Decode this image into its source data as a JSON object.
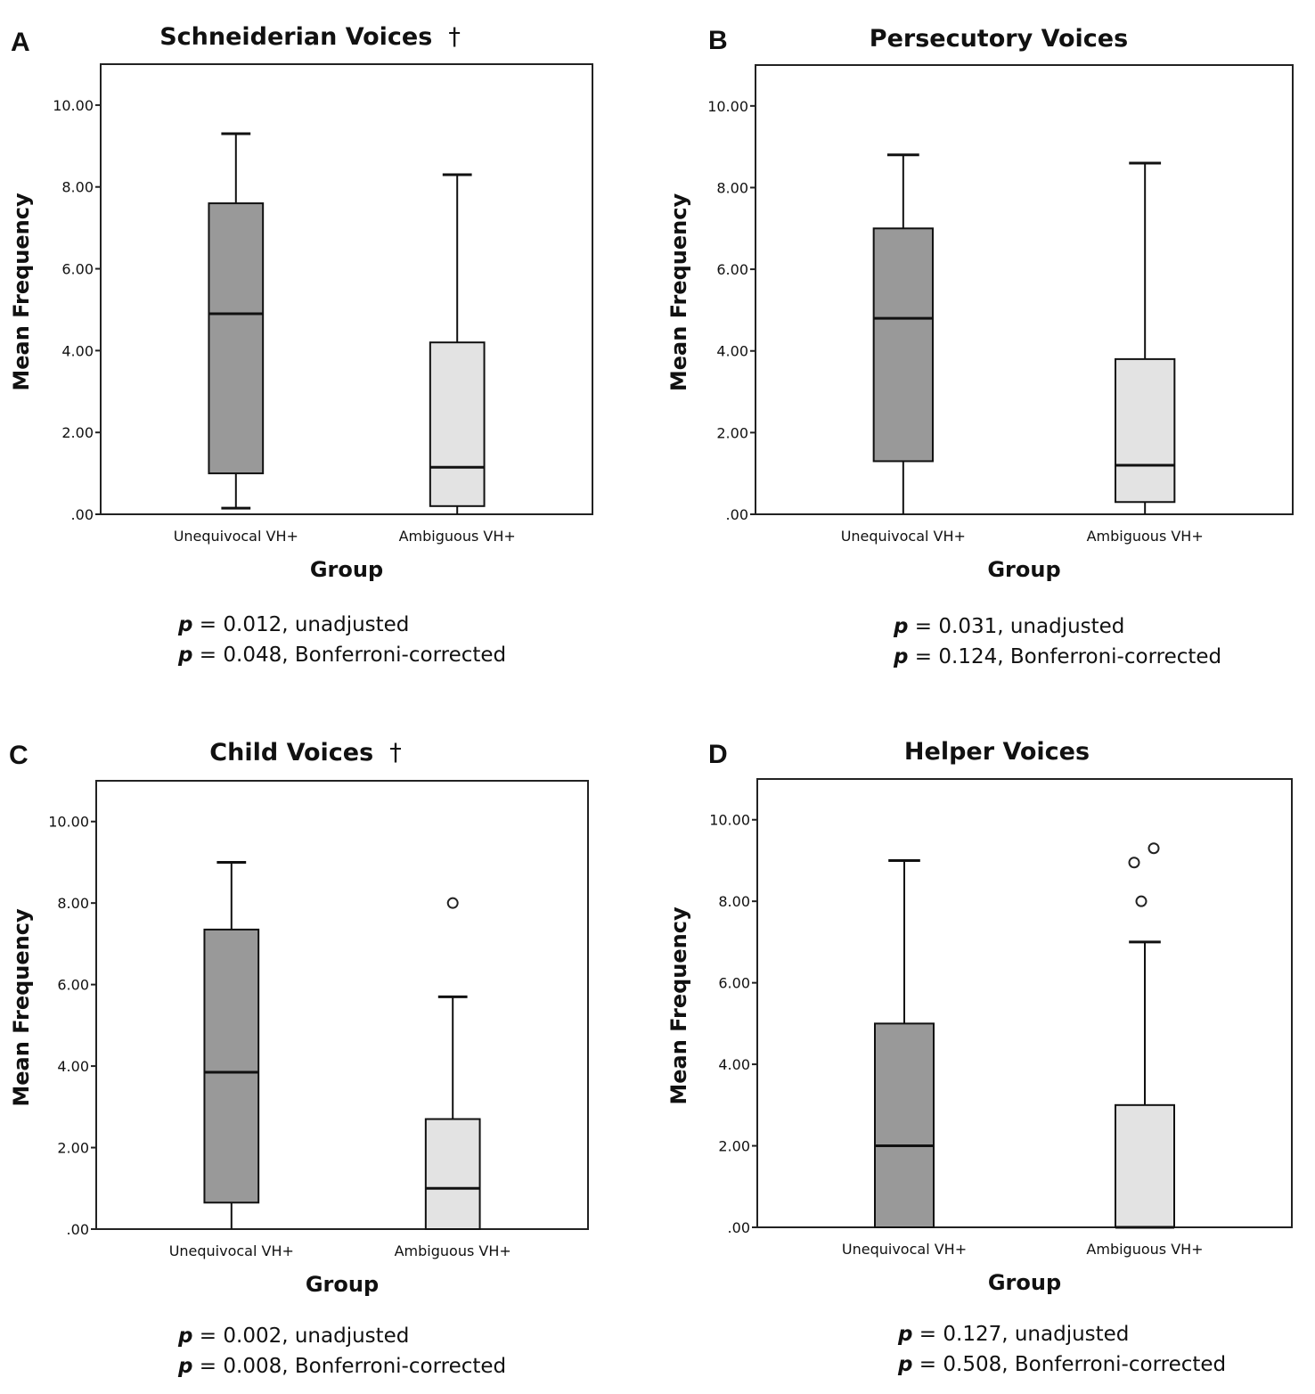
{
  "chart_data": [
    {
      "type": "box",
      "panel_label": "A",
      "title": "Schneiderian Voices",
      "title_mark": "†",
      "xlabel": "Group",
      "ylabel": "Mean Frequency",
      "ylim": [
        0,
        11
      ],
      "yticks": [
        0,
        2,
        4,
        6,
        8,
        10
      ],
      "ytick_labels": [
        ".00",
        "2.00",
        "4.00",
        "6.00",
        "8.00",
        "10.00"
      ],
      "categories": [
        "Unequivocal VH+",
        "Ambiguous VH+"
      ],
      "boxes": [
        {
          "min": 0.15,
          "q1": 1.0,
          "median": 4.9,
          "q3": 7.6,
          "max": 9.3,
          "outliers": []
        },
        {
          "min": 0.0,
          "q1": 0.2,
          "median": 1.15,
          "q3": 4.2,
          "max": 8.3,
          "outliers": []
        }
      ],
      "p_unadjusted": "0.012, unadjusted",
      "p_corrected": "0.048, Bonferroni-corrected"
    },
    {
      "type": "box",
      "panel_label": "B",
      "title": "Persecutory Voices",
      "title_mark": "",
      "xlabel": "Group",
      "ylabel": "Mean Frequency",
      "ylim": [
        0,
        11
      ],
      "yticks": [
        0,
        2,
        4,
        6,
        8,
        10
      ],
      "ytick_labels": [
        ".00",
        "2.00",
        "4.00",
        "6.00",
        "8.00",
        "10.00"
      ],
      "categories": [
        "Unequivocal VH+",
        "Ambiguous VH+"
      ],
      "boxes": [
        {
          "min": 0.0,
          "q1": 1.3,
          "median": 4.8,
          "q3": 7.0,
          "max": 8.8,
          "outliers": []
        },
        {
          "min": 0.0,
          "q1": 0.3,
          "median": 1.2,
          "q3": 3.8,
          "max": 8.6,
          "outliers": []
        }
      ],
      "p_unadjusted": "0.031, unadjusted",
      "p_corrected": "0.124, Bonferroni-corrected"
    },
    {
      "type": "box",
      "panel_label": "C",
      "title": "Child Voices",
      "title_mark": "†",
      "xlabel": "Group",
      "ylabel": "Mean Frequency",
      "ylim": [
        0,
        11
      ],
      "yticks": [
        0,
        2,
        4,
        6,
        8,
        10
      ],
      "ytick_labels": [
        ".00",
        "2.00",
        "4.00",
        "6.00",
        "8.00",
        "10.00"
      ],
      "categories": [
        "Unequivocal VH+",
        "Ambiguous VH+"
      ],
      "boxes": [
        {
          "min": 0.0,
          "q1": 0.65,
          "median": 3.85,
          "q3": 7.35,
          "max": 9.0,
          "outliers": []
        },
        {
          "min": 0.0,
          "q1": 0.0,
          "median": 1.0,
          "q3": 2.7,
          "max": 5.7,
          "outliers": [
            8.0
          ]
        }
      ],
      "p_unadjusted": "0.002, unadjusted",
      "p_corrected": "0.008, Bonferroni-corrected"
    },
    {
      "type": "box",
      "panel_label": "D",
      "title": "Helper Voices",
      "title_mark": "",
      "xlabel": "Group",
      "ylabel": "Mean Frequency",
      "ylim": [
        0,
        11
      ],
      "yticks": [
        0,
        2,
        4,
        6,
        8,
        10
      ],
      "ytick_labels": [
        ".00",
        "2.00",
        "4.00",
        "6.00",
        "8.00",
        "10.00"
      ],
      "categories": [
        "Unequivocal VH+",
        "Ambiguous VH+"
      ],
      "boxes": [
        {
          "min": 0.0,
          "q1": 0.0,
          "median": 2.0,
          "q3": 5.0,
          "max": 9.0,
          "outliers": []
        },
        {
          "min": 0.0,
          "q1": 0.0,
          "median": 0.0,
          "q3": 3.0,
          "max": 7.0,
          "outliers": [
            8.0,
            8.95,
            9.3
          ]
        }
      ],
      "p_unadjusted": "0.127, unadjusted",
      "p_corrected": "0.508, Bonferroni-corrected"
    }
  ],
  "p_symbol": "p",
  "equals": "=",
  "colors": {
    "unequivocal_fill": "#999999",
    "ambiguous_fill": "#e3e3e3",
    "stroke": "#111111"
  }
}
